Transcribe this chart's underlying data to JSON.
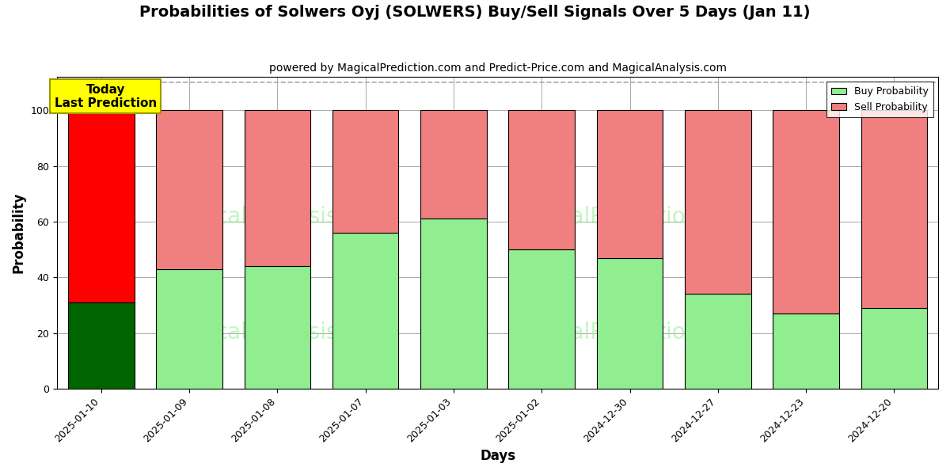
{
  "title": "Probabilities of Solwers Oyj (SOLWERS) Buy/Sell Signals Over 5 Days (Jan 11)",
  "subtitle": "powered by MagicalPrediction.com and Predict-Price.com and MagicalAnalysis.com",
  "xlabel": "Days",
  "ylabel": "Probability",
  "categories": [
    "2025-01-10",
    "2025-01-09",
    "2025-01-08",
    "2025-01-07",
    "2025-01-03",
    "2025-01-02",
    "2024-12-30",
    "2024-12-27",
    "2024-12-23",
    "2024-12-20"
  ],
  "buy_values": [
    31,
    43,
    44,
    56,
    61,
    50,
    47,
    34,
    27,
    29
  ],
  "sell_values": [
    69,
    57,
    56,
    44,
    39,
    50,
    53,
    66,
    73,
    71
  ],
  "buy_colors": [
    "#006400",
    "#90EE90",
    "#90EE90",
    "#90EE90",
    "#90EE90",
    "#90EE90",
    "#90EE90",
    "#90EE90",
    "#90EE90",
    "#90EE90"
  ],
  "sell_colors": [
    "#FF0000",
    "#F08080",
    "#F08080",
    "#F08080",
    "#F08080",
    "#F08080",
    "#F08080",
    "#F08080",
    "#F08080",
    "#F08080"
  ],
  "today_label_line1": "Today",
  "today_label_line2": "Last Prediction",
  "today_bg_color": "#FFFF00",
  "ylim": [
    0,
    112
  ],
  "dashed_line_y": 110,
  "legend_buy_label": "Buy Probability",
  "legend_sell_label": "Sell Probability",
  "legend_buy_color": "#90EE90",
  "legend_sell_color": "#F08080",
  "bar_edge_color": "#000000",
  "grid_color": "#aaaaaa",
  "background_color": "#ffffff",
  "title_fontsize": 14,
  "subtitle_fontsize": 10,
  "axis_label_fontsize": 12,
  "tick_fontsize": 9,
  "bar_width": 0.75
}
